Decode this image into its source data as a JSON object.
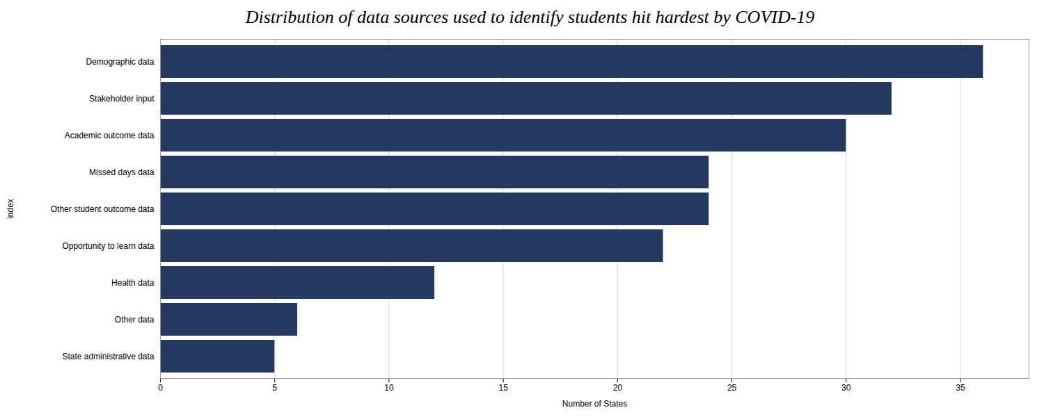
{
  "chart_data": {
    "type": "bar",
    "orientation": "horizontal",
    "title": "Distribution of data sources used to identify students hit hardest by COVID-19",
    "categories": [
      "State administrative data",
      "Other data",
      "Health data",
      "Opportunity to learn data",
      "Other student outcome data",
      "Missed days data",
      "Academic outcome data",
      "Stakeholder input",
      "Demographic data"
    ],
    "values": [
      5,
      6,
      12,
      22,
      24,
      24,
      30,
      32,
      36
    ],
    "color": "#253860",
    "xlabel": "Number of States",
    "ylabel": "index",
    "xlim": [
      0,
      38
    ],
    "xticks": [
      0,
      5,
      10,
      15,
      20,
      25,
      30,
      35
    ],
    "grid": true
  }
}
